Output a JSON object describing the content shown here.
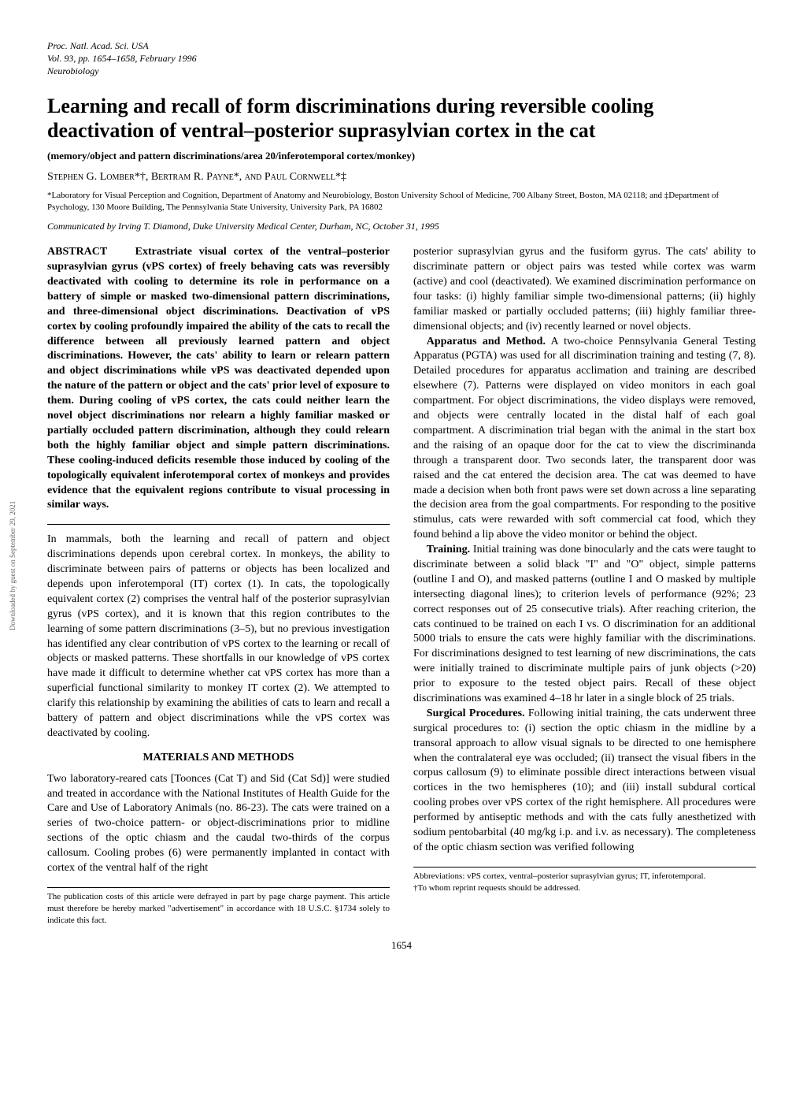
{
  "journal": {
    "line1": "Proc. Natl. Acad. Sci. USA",
    "line2": "Vol. 93, pp. 1654–1658, February 1996",
    "line3": "Neurobiology"
  },
  "title": "Learning and recall of form discriminations during reversible cooling deactivation of ventral–posterior suprasylvian cortex in the cat",
  "keywords": "(memory/object and pattern discriminations/area 20/inferotemporal cortex/monkey)",
  "authors": "Stephen G. Lomber*†, Bertram R. Payne*, and Paul Cornwell*‡",
  "affiliations": "*Laboratory for Visual Perception and Cognition, Department of Anatomy and Neurobiology, Boston University School of Medicine, 700 Albany Street, Boston, MA 02118; and ‡Department of Psychology, 130 Moore Building, The Pennsylvania State University, University Park, PA 16802",
  "communicated": "Communicated by Irving T. Diamond, Duke University Medical Center, Durham, NC, October 31, 1995",
  "abstract_label": "ABSTRACT",
  "abstract_text": "Extrastriate visual cortex of the ventral–posterior suprasylvian gyrus (vPS cortex) of freely behaving cats was reversibly deactivated with cooling to determine its role in performance on a battery of simple or masked two-dimensional pattern discriminations, and three-dimensional object discriminations. Deactivation of vPS cortex by cooling profoundly impaired the ability of the cats to recall the difference between all previously learned pattern and object discriminations. However, the cats' ability to learn or relearn pattern and object discriminations while vPS was deactivated depended upon the nature of the pattern or object and the cats' prior level of exposure to them. During cooling of vPS cortex, the cats could neither learn the novel object discriminations nor relearn a highly familiar masked or partially occluded pattern discrimination, although they could relearn both the highly familiar object and simple pattern discriminations. These cooling-induced deficits resemble those induced by cooling of the topologically equivalent inferotemporal cortex of monkeys and provides evidence that the equivalent regions contribute to visual processing in similar ways.",
  "intro": "In mammals, both the learning and recall of pattern and object discriminations depends upon cerebral cortex. In monkeys, the ability to discriminate between pairs of patterns or objects has been localized and depends upon inferotemporal (IT) cortex (1). In cats, the topologically equivalent cortex (2) comprises the ventral half of the posterior suprasylvian gyrus (vPS cortex), and it is known that this region contributes to the learning of some pattern discriminations (3–5), but no previous investigation has identified any clear contribution of vPS cortex to the learning or recall of objects or masked patterns. These shortfalls in our knowledge of vPS cortex have made it difficult to determine whether cat vPS cortex has more than a superficial functional similarity to monkey IT cortex (2). We attempted to clarify this relationship by examining the abilities of cats to learn and recall a battery of pattern and object discriminations while the vPS cortex was deactivated by cooling.",
  "section1_heading": "MATERIALS AND METHODS",
  "methods_p1": "Two laboratory-reared cats [Toonces (Cat T) and Sid (Cat Sd)] were studied and treated in accordance with the National Institutes of Health Guide for the Care and Use of Laboratory Animals (no. 86-23). The cats were trained on a series of two-choice pattern- or object-discriminations prior to midline sections of the optic chiasm and the caudal two-thirds of the corpus callosum. Cooling probes (6) were permanently implanted in contact with cortex of the ventral half of the right",
  "publication_note": "The publication costs of this article were defrayed in part by page charge payment. This article must therefore be hereby marked \"advertisement\" in accordance with 18 U.S.C. §1734 solely to indicate this fact.",
  "col2_p1": "posterior suprasylvian gyrus and the fusiform gyrus. The cats' ability to discriminate pattern or object pairs was tested while cortex was warm (active) and cool (deactivated). We examined discrimination performance on four tasks: (i) highly familiar simple two-dimensional patterns; (ii) highly familiar masked or partially occluded patterns; (iii) highly familiar three-dimensional objects; and (iv) recently learned or novel objects.",
  "apparatus_label": "Apparatus and Method.",
  "apparatus_text": "A two-choice Pennsylvania General Testing Apparatus (PGTA) was used for all discrimination training and testing (7, 8). Detailed procedures for apparatus acclimation and training are described elsewhere (7). Patterns were displayed on video monitors in each goal compartment. For object discriminations, the video displays were removed, and objects were centrally located in the distal half of each goal compartment. A discrimination trial began with the animal in the start box and the raising of an opaque door for the cat to view the discriminanda through a transparent door. Two seconds later, the transparent door was raised and the cat entered the decision area. The cat was deemed to have made a decision when both front paws were set down across a line separating the decision area from the goal compartments. For responding to the positive stimulus, cats were rewarded with soft commercial cat food, which they found behind a lip above the video monitor or behind the object.",
  "training_label": "Training.",
  "training_text": "Initial training was done binocularly and the cats were taught to discriminate between a solid black \"I\" and \"O\" object, simple patterns (outline I and O), and masked patterns (outline I and O masked by multiple intersecting diagonal lines); to criterion levels of performance (92%; 23 correct responses out of 25 consecutive trials). After reaching criterion, the cats continued to be trained on each I vs. O discrimination for an additional 5000 trials to ensure the cats were highly familiar with the discriminations. For discriminations designed to test learning of new discriminations, the cats were initially trained to discriminate multiple pairs of junk objects (>20) prior to exposure to the tested object pairs. Recall of these object discriminations was examined 4–18 hr later in a single block of 25 trials.",
  "surgical_label": "Surgical Procedures.",
  "surgical_text": "Following initial training, the cats underwent three surgical procedures to: (i) section the optic chiasm in the midline by a transoral approach to allow visual signals to be directed to one hemisphere when the contralateral eye was occluded; (ii) transect the visual fibers in the corpus callosum (9) to eliminate possible direct interactions between visual cortices in the two hemispheres (10); and (iii) install subdural cortical cooling probes over vPS cortex of the right hemisphere. All procedures were performed by antiseptic methods and with the cats fully anesthetized with sodium pentobarbital (40 mg/kg i.p. and i.v. as necessary). The completeness of the optic chiasm section was verified following",
  "abbrev_note": "Abbreviations: vPS cortex, ventral–posterior suprasylvian gyrus; IT, inferotemporal.",
  "reprint_note": "†To whom reprint requests should be addressed.",
  "page_number": "1654",
  "side_text": "Downloaded by guest on September 29, 2021"
}
